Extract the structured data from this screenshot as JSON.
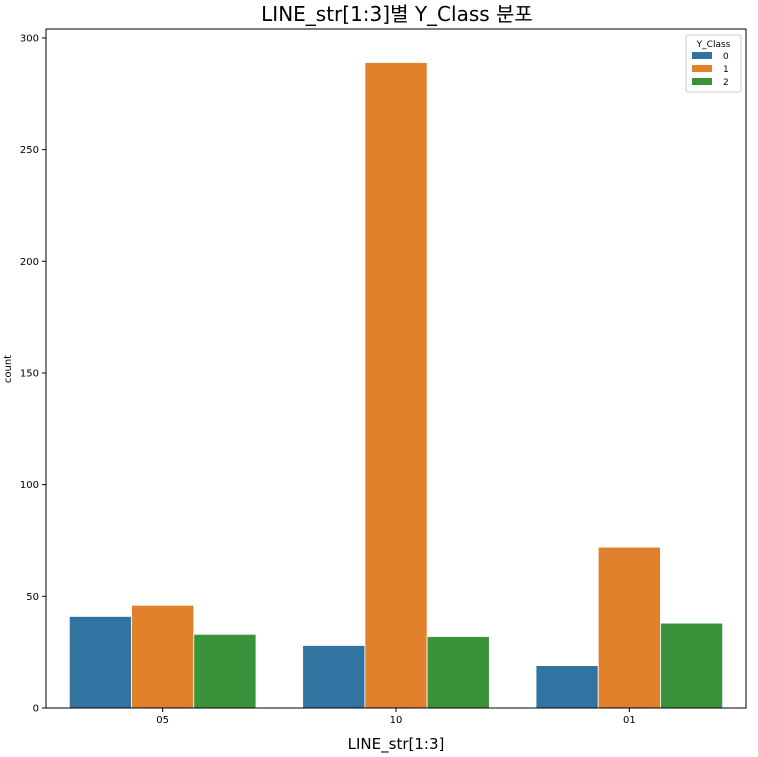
{
  "chart_data": {
    "type": "bar",
    "title": "LINE_str[1:3]별 Y_Class 분포",
    "xlabel": "LINE_str[1:3]",
    "ylabel": "count",
    "categories": [
      "05",
      "10",
      "01"
    ],
    "series": [
      {
        "name": "0",
        "color": "#3274a1",
        "values": [
          41,
          28,
          19
        ]
      },
      {
        "name": "1",
        "color": "#e1812c",
        "values": [
          46,
          289,
          72
        ]
      },
      {
        "name": "2",
        "color": "#3a923a",
        "values": [
          33,
          32,
          38
        ]
      }
    ],
    "ylim": [
      0,
      304
    ],
    "yticks": [
      0,
      50,
      100,
      150,
      200,
      250,
      300
    ],
    "grid": false,
    "legend": {
      "title": "Y_Class",
      "placement": "top-right"
    }
  }
}
